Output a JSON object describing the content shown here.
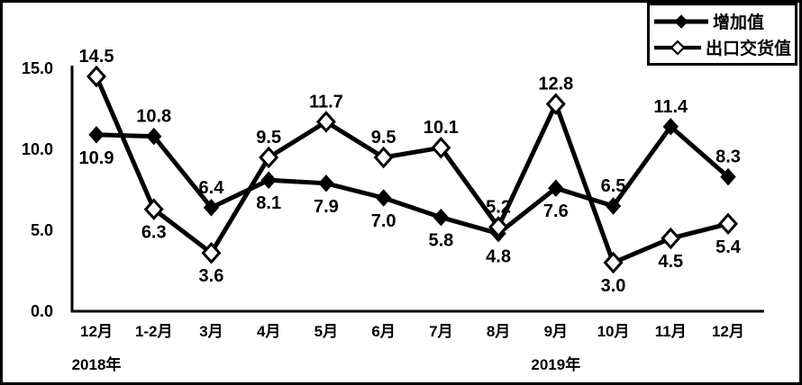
{
  "legend": {
    "items": [
      {
        "label": "增加值",
        "marker": "filled-diamond"
      },
      {
        "label": "出口交货值",
        "marker": "open-diamond"
      }
    ]
  },
  "chart_data": {
    "type": "line",
    "title": "",
    "categories": [
      "12月",
      "1-2月",
      "3月",
      "4月",
      "5月",
      "6月",
      "7月",
      "8月",
      "9月",
      "10月",
      "11月",
      "12月"
    ],
    "series": [
      {
        "name": "增加值",
        "marker": "filled-diamond",
        "color": "#000000",
        "values": [
          10.9,
          10.8,
          6.4,
          8.1,
          7.9,
          7.0,
          5.8,
          4.8,
          7.6,
          6.5,
          11.4,
          8.3
        ],
        "label_positions": [
          "below",
          "above",
          "above",
          "below",
          "below",
          "below",
          "below",
          "below",
          "below",
          "above",
          "above",
          "above"
        ]
      },
      {
        "name": "出口交货值",
        "marker": "open-diamond",
        "color": "#000000",
        "values": [
          14.5,
          6.3,
          3.6,
          9.5,
          11.7,
          9.5,
          10.1,
          5.2,
          12.8,
          3.0,
          4.5,
          5.4
        ],
        "label_positions": [
          "above",
          "below",
          "below",
          "above",
          "above",
          "above",
          "above",
          "above",
          "above",
          "below",
          "below",
          "below"
        ]
      }
    ],
    "xlabel": "",
    "ylabel": "",
    "ylim": [
      0,
      15
    ],
    "y_ticks": [
      "15.0",
      "10.0",
      "5.0",
      "0.0"
    ],
    "year_labels": [
      {
        "text": "2018年",
        "category_index": 0
      },
      {
        "text": "2019年",
        "category_index": 8
      }
    ],
    "grid": false,
    "legend_position": "top-right",
    "colors": {
      "line": "#000000",
      "background": "#ffffff",
      "border": "#000000"
    }
  }
}
